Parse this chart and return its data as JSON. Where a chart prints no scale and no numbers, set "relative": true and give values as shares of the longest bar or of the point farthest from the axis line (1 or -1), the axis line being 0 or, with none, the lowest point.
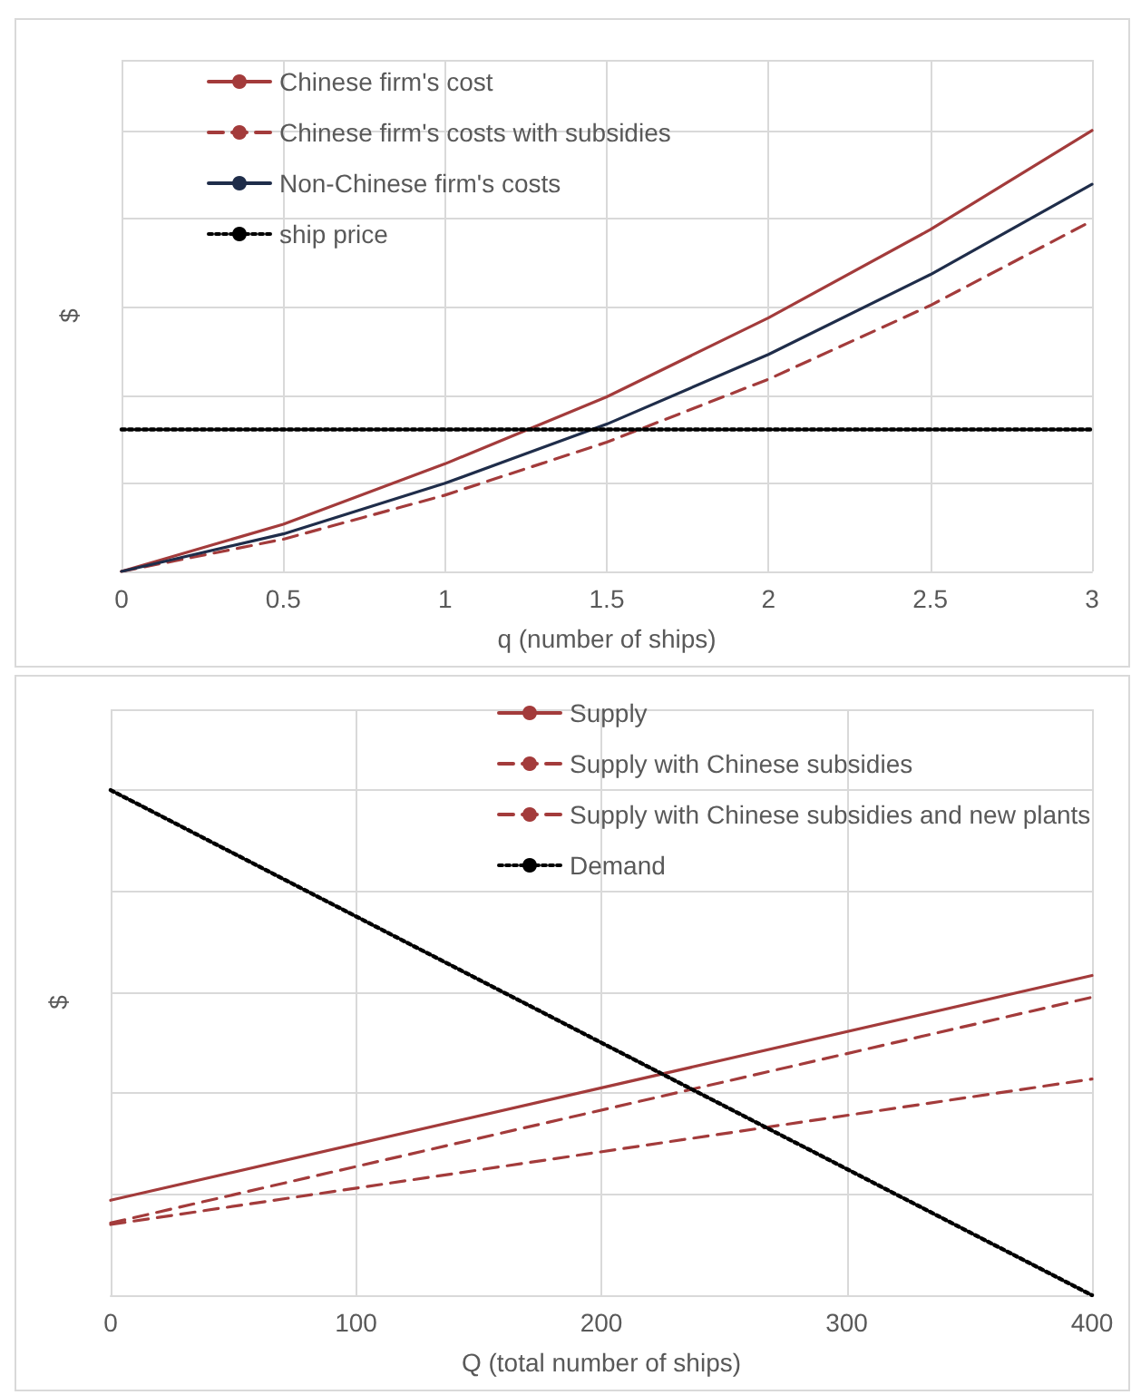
{
  "chart_data": [
    {
      "type": "line",
      "xlabel": "q (number of ships)",
      "ylabel": "$",
      "relative": true,
      "x": [
        0,
        0.5,
        1,
        1.5,
        2,
        2.5,
        3
      ],
      "xlim": [
        0,
        3
      ],
      "xticks": [
        0,
        0.5,
        1,
        1.5,
        2,
        2.5,
        3
      ],
      "grid": true,
      "legend": "top left",
      "marker": "none",
      "series": [
        {
          "name": "Chinese firm's cost",
          "color": "#a33b3b",
          "line_style": "solid",
          "values": [
            0,
            0.107,
            0.244,
            0.396,
            0.575,
            0.775,
            1
          ]
        },
        {
          "name": "Chinese firm's costs with subsidies",
          "color": "#a33b3b",
          "line_style": "dashed",
          "values": [
            0,
            0.073,
            0.173,
            0.293,
            0.436,
            0.603,
            0.795
          ]
        },
        {
          "name": "Non-Chinese firm's costs",
          "color": "#1f2d4a",
          "line_style": "solid",
          "values": [
            0,
            0.085,
            0.2,
            0.334,
            0.492,
            0.673,
            0.878
          ]
        },
        {
          "name": "ship price",
          "color": "#000000",
          "line_style": "dotted",
          "x": [
            0,
            3
          ],
          "values": [
            0.322,
            0.322
          ]
        }
      ]
    },
    {
      "type": "line",
      "xlabel": "Q (total number of ships)",
      "ylabel": "$",
      "relative": true,
      "x": [
        0,
        400
      ],
      "xlim": [
        0,
        400
      ],
      "xticks": [
        0,
        100,
        200,
        300,
        400
      ],
      "grid": true,
      "legend": "top",
      "marker": "none",
      "series": [
        {
          "name": "Supply",
          "color": "#a33b3b",
          "line_style": "solid",
          "values": [
            0.188,
            0.633
          ]
        },
        {
          "name": "Supply with Chinese subsidies",
          "color": "#a33b3b",
          "line_style": "dashed",
          "values": [
            0.143,
            0.59
          ]
        },
        {
          "name": "Supply with Chinese subsidies and new plants",
          "color": "#a33b3b",
          "line_style": "dashed",
          "values": [
            0.14,
            0.428
          ]
        },
        {
          "name": "Demand",
          "color": "#000000",
          "line_style": "dotted",
          "values": [
            1,
            0
          ]
        }
      ]
    }
  ]
}
